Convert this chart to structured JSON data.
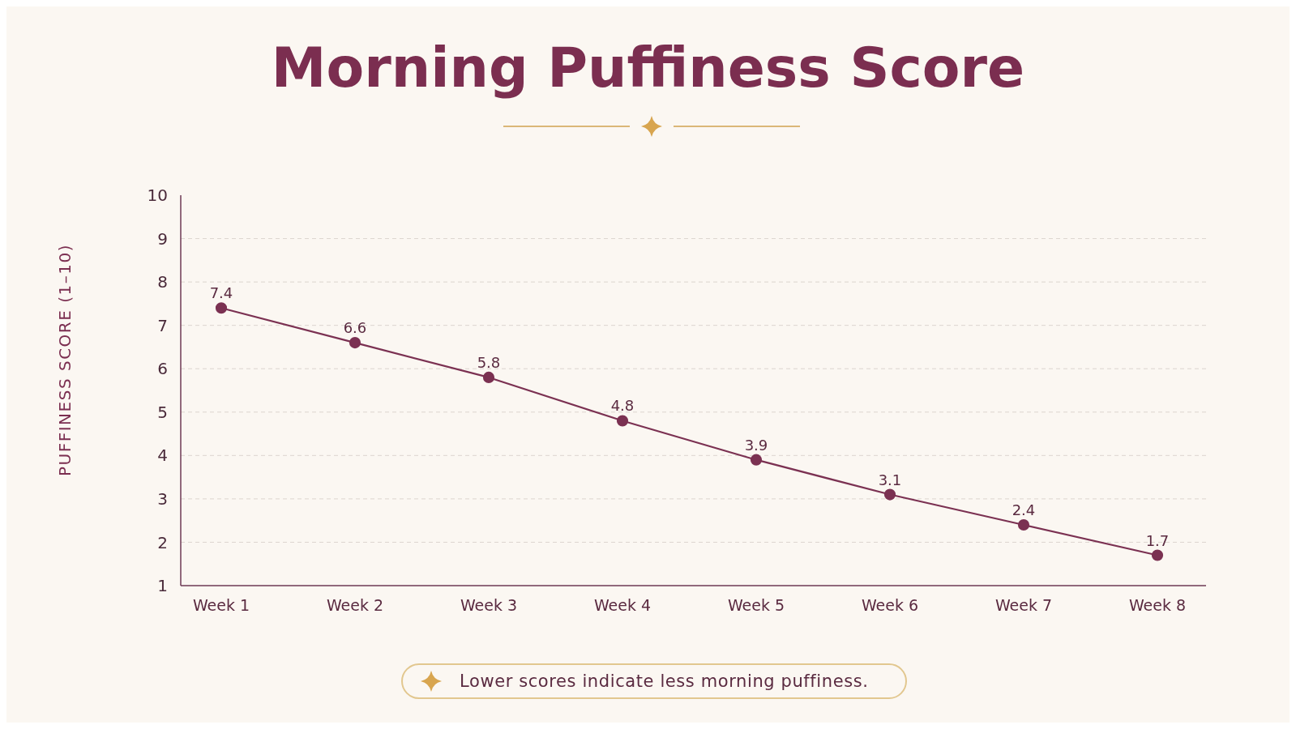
{
  "chart_data": {
    "type": "line",
    "title": "Morning Puffiness Score",
    "ylabel": "PUFFINESS SCORE (1–10)",
    "categories": [
      "Week 1",
      "Week 2",
      "Week 3",
      "Week 4",
      "Week 5",
      "Week 6",
      "Week 7",
      "Week 8"
    ],
    "series": [
      {
        "color": "#7b3152",
        "values": [
          7.4,
          6.6,
          5.8,
          4.8,
          3.9,
          3.1,
          2.4,
          1.7
        ]
      }
    ],
    "ylim": [
      1,
      10
    ],
    "yticks": [
      1,
      2,
      3,
      4,
      5,
      6,
      7,
      8,
      9,
      10
    ],
    "grid": "y",
    "marker": "circle",
    "line_style": "solid",
    "data_labels": true,
    "legend": false,
    "annotations": [
      "Lower scores indicate less morning puffiness."
    ]
  }
}
